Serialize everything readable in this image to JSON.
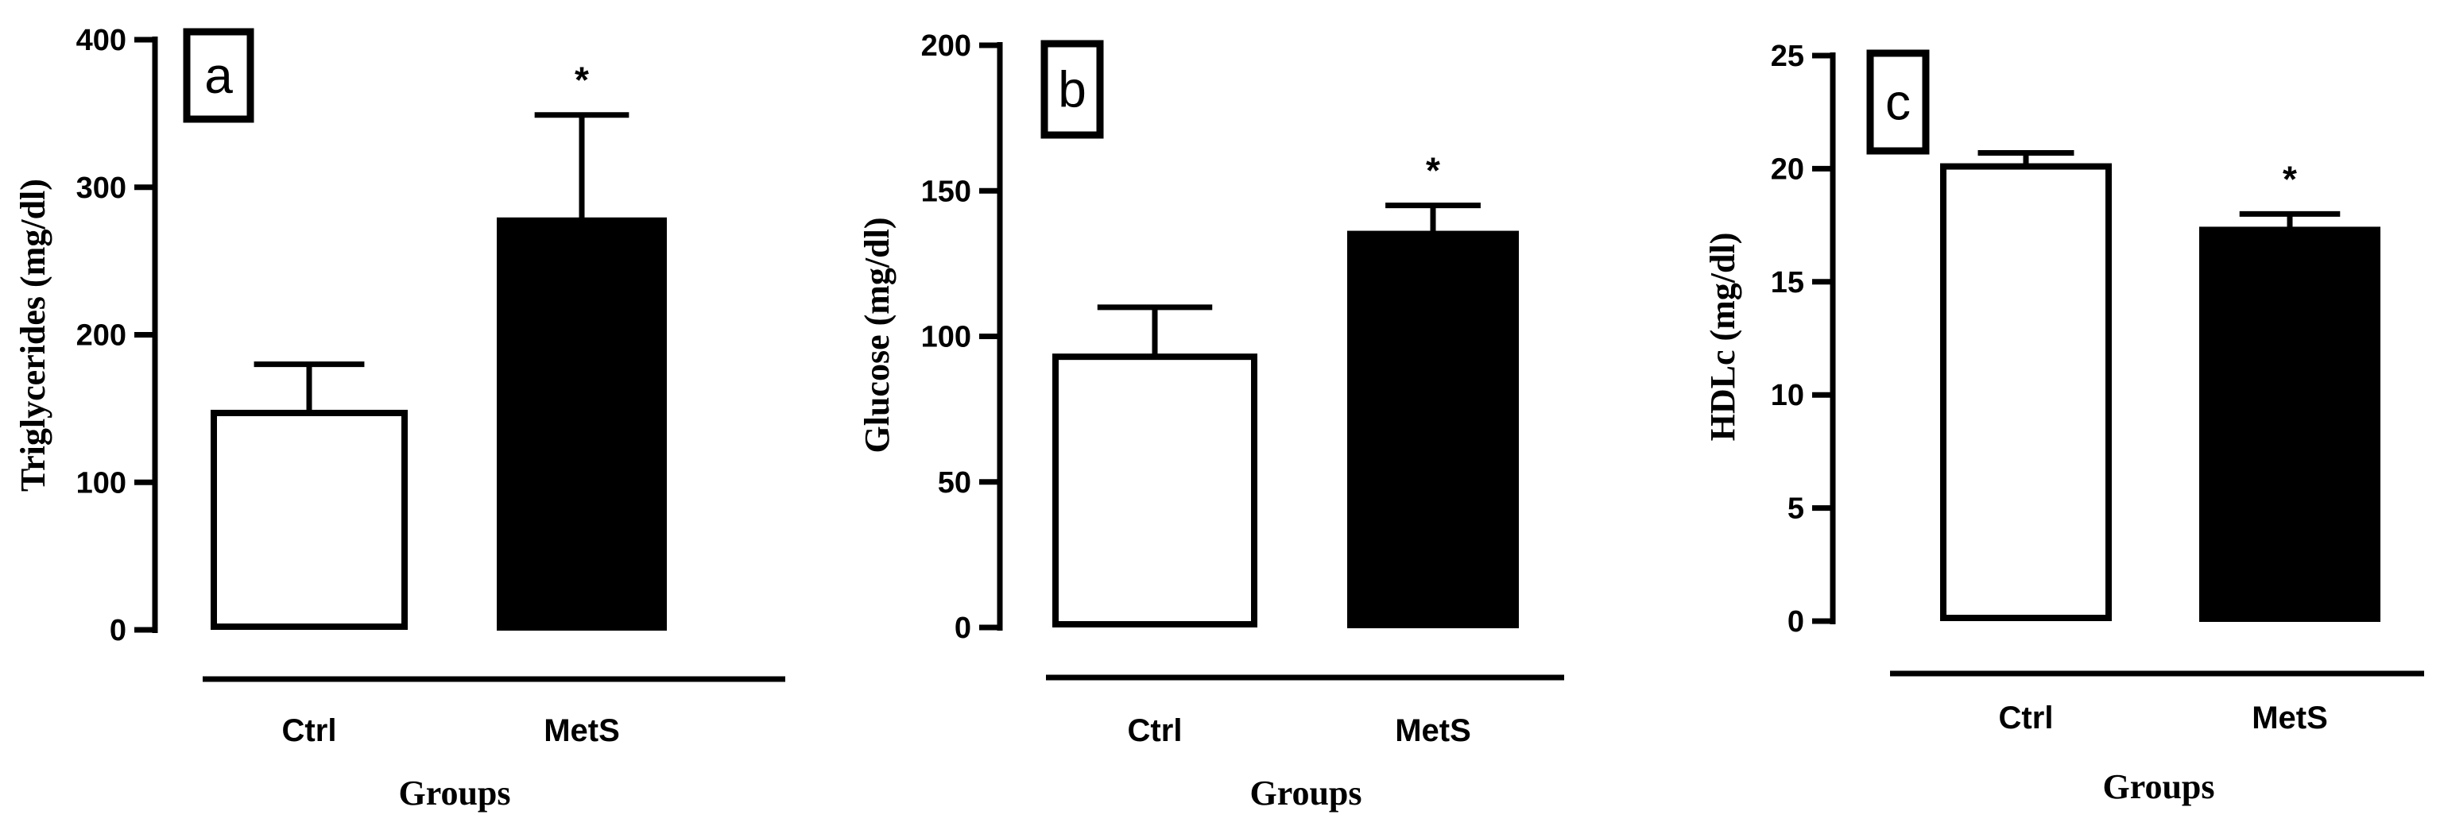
{
  "chart_data": [
    {
      "type": "bar",
      "panel": "a",
      "categories": [
        "Ctrl",
        "MetS"
      ],
      "values": [
        147,
        279
      ],
      "errors": [
        33,
        70
      ],
      "significance": [
        "",
        "*"
      ],
      "fill": [
        "#ffffff",
        "#000000"
      ],
      "title": "",
      "xlabel": "Groups",
      "ylabel": "Triglycerides (mg/dl)",
      "ylim": [
        0,
        400
      ],
      "yticks": [
        0,
        100,
        200,
        300,
        400
      ],
      "grid": false
    },
    {
      "type": "bar",
      "panel": "b",
      "categories": [
        "Ctrl",
        "MetS"
      ],
      "values": [
        93,
        136
      ],
      "errors": [
        17,
        9
      ],
      "significance": [
        "",
        "*"
      ],
      "fill": [
        "#ffffff",
        "#000000"
      ],
      "title": "",
      "xlabel": "Groups",
      "ylabel": "Glucose (mg/dl)",
      "ylim": [
        0,
        200
      ],
      "yticks": [
        0,
        50,
        100,
        150,
        200
      ],
      "grid": false
    },
    {
      "type": "bar",
      "panel": "c",
      "categories": [
        "Ctrl",
        "MetS"
      ],
      "values": [
        20.1,
        17.4
      ],
      "errors": [
        0.6,
        0.6
      ],
      "significance": [
        "",
        "*"
      ],
      "fill": [
        "#ffffff",
        "#000000"
      ],
      "title": "",
      "xlabel": "Groups",
      "ylabel": "HDLc (mg/dl)",
      "ylim": [
        0,
        25
      ],
      "yticks": [
        0,
        5,
        10,
        15,
        20,
        25
      ],
      "grid": false
    }
  ]
}
